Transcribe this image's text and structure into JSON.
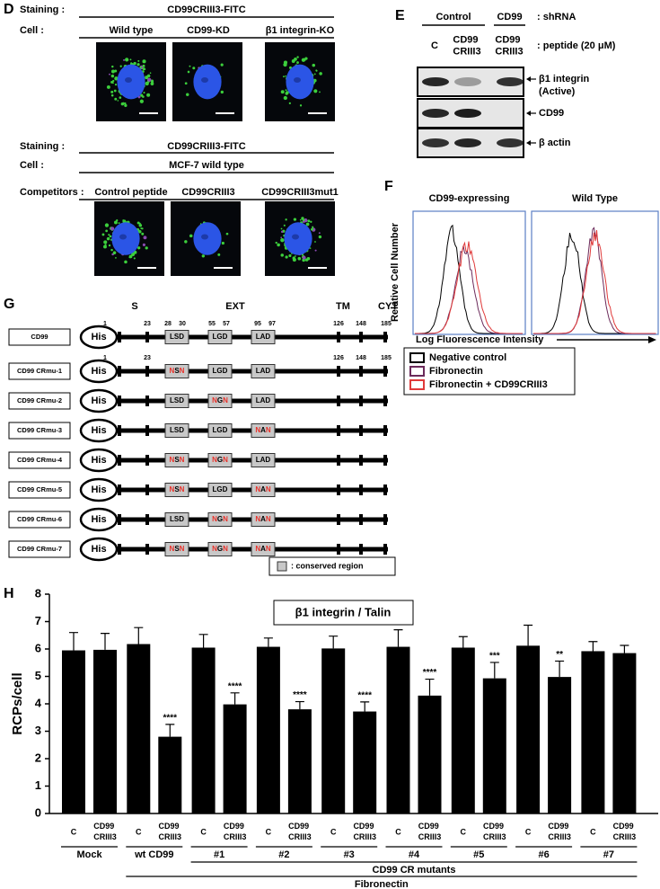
{
  "panel_d": {
    "label": "D",
    "top": {
      "staining_label": "Staining :",
      "staining": "CD99CRIII3-FITC",
      "cell_label": "Cell :",
      "cells": [
        "Wild type",
        "CD99-KD",
        "β1 integrin-KO"
      ]
    },
    "bottom": {
      "staining_label": "Staining :",
      "staining": "CD99CRIII3-FITC",
      "cell_label": "Cell :",
      "cell": "MCF-7 wild type",
      "competitors_label": "Competitors :",
      "competitors": [
        "Control peptide",
        "CD99CRIII3",
        "CD99CRIII3mut1"
      ]
    }
  },
  "panel_e": {
    "label": "E",
    "groups": [
      "Control",
      "CD99"
    ],
    "group_axis": ": shRNA",
    "lanes": [
      "C",
      "CD99 CRIII3",
      "CD99 CRIII3"
    ],
    "lane_axis": ": peptide (20 μM)",
    "blots": [
      "β1 integrin (Active)",
      "CD99",
      "β actin"
    ]
  },
  "panel_f": {
    "label": "F",
    "y_label": "Relative Cell Number",
    "x_label": "Log Fluorescence Intensity",
    "plots": [
      "CD99-expressing",
      "Wild Type"
    ],
    "legend": [
      {
        "name": "Negative control",
        "color": "#000000"
      },
      {
        "name": "Fibronectin",
        "color": "#6b2a5a"
      },
      {
        "name": "Fibronectin + CD99CRIII3",
        "color": "#e03a3a"
      }
    ]
  },
  "panel_g": {
    "label": "G",
    "regions": [
      "S",
      "EXT",
      "TM",
      "CYT"
    ],
    "constructs": [
      {
        "name": "CD99",
        "tag": "His",
        "motifs": [
          "LSD",
          "LGD",
          "LAD"
        ],
        "positions": [
          1,
          23,
          28,
          30,
          55,
          57,
          95,
          97,
          126,
          148,
          185
        ]
      },
      {
        "name": "CD99 CRmu-1",
        "tag": "His",
        "motifs": [
          "NSN",
          "LGD",
          "LAD"
        ],
        "positions": [
          1,
          23,
          null,
          null,
          null,
          null,
          null,
          null,
          126,
          148,
          185
        ]
      },
      {
        "name": "CD99 CRmu-2",
        "tag": "His",
        "motifs": [
          "LSD",
          "NGN",
          "LAD"
        ]
      },
      {
        "name": "CD99 CRmu-3",
        "tag": "His",
        "motifs": [
          "LSD",
          "LGD",
          "NAN"
        ]
      },
      {
        "name": "CD99 CRmu-4",
        "tag": "His",
        "motifs": [
          "NSN",
          "NGN",
          "LAD"
        ]
      },
      {
        "name": "CD99 CRmu-5",
        "tag": "His",
        "motifs": [
          "NSN",
          "LGD",
          "NAN"
        ]
      },
      {
        "name": "CD99 CRmu-6",
        "tag": "His",
        "motifs": [
          "LSD",
          "NGN",
          "NAN"
        ]
      },
      {
        "name": "CD99 CRmu-7",
        "tag": "His",
        "motifs": [
          "NSN",
          "NGN",
          "NAN"
        ]
      }
    ],
    "legend": ": conserved region"
  },
  "chart_data": {
    "type": "bar",
    "panel_label": "H",
    "title": "β1 integrin / Talin",
    "y_label": "RCPs/cell",
    "categories": [
      "C",
      "CD99 CRIII3",
      "C",
      "CD99 CRIII3",
      "C",
      "CD99 CRIII3",
      "C",
      "CD99 CRIII3",
      "C",
      "CD99 CRIII3",
      "C",
      "CD99 CRIII3",
      "C",
      "CD99 CRIII3",
      "C",
      "CD99 CRIII3",
      "C",
      "CD99 CRIII3"
    ],
    "values": [
      5.95,
      5.97,
      6.18,
      2.8,
      6.05,
      3.98,
      6.08,
      3.8,
      6.02,
      3.72,
      6.08,
      4.3,
      6.05,
      4.93,
      6.12,
      4.98,
      5.92,
      5.85
    ],
    "errors": [
      0.65,
      0.6,
      0.6,
      0.45,
      0.48,
      0.42,
      0.32,
      0.28,
      0.45,
      0.35,
      0.62,
      0.6,
      0.4,
      0.58,
      0.75,
      0.58,
      0.35,
      0.28
    ],
    "significance": [
      null,
      null,
      null,
      "****",
      null,
      "****",
      null,
      "****",
      null,
      "****",
      null,
      "****",
      null,
      "***",
      null,
      "**",
      null,
      null
    ],
    "pairs": [
      "Mock",
      "wt CD99",
      "#1",
      "#2",
      "#3",
      "#4",
      "#5",
      "#6",
      "#7"
    ],
    "mutant_group": "CD99 CR mutants",
    "condition": "Fibronectin",
    "color": "#000000",
    "ylim": [
      0,
      8
    ],
    "yticks": [
      0,
      1,
      2,
      3,
      4,
      5,
      6,
      7,
      8
    ],
    "grid": false
  }
}
